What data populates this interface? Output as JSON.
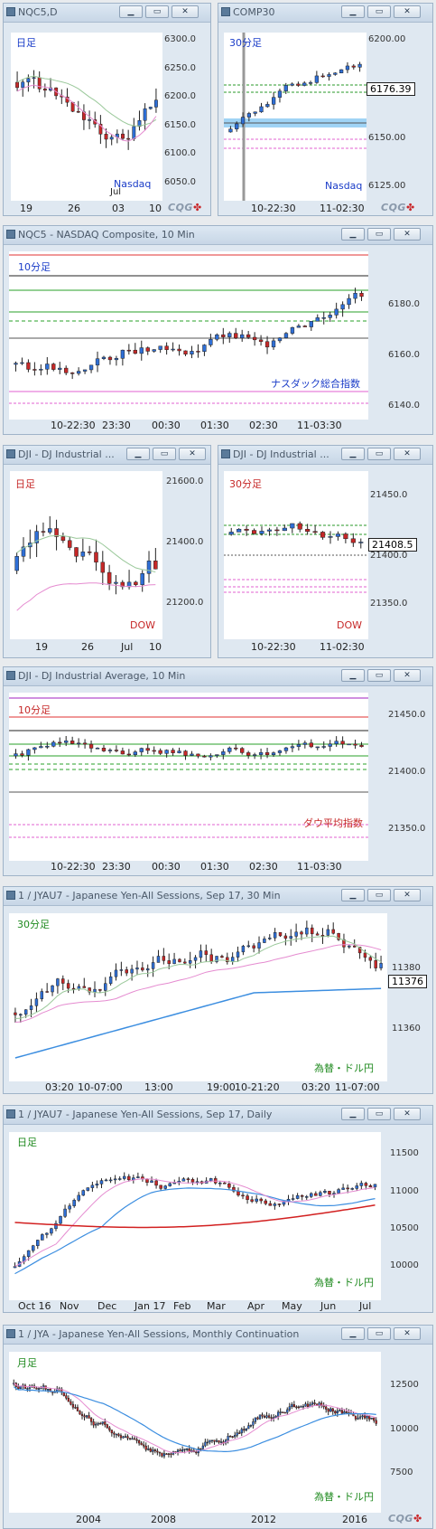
{
  "colors": {
    "up": "#2f6fd6",
    "down": "#c62828",
    "ma_green": "#9bc99b",
    "ma_pink": "#e58bd0",
    "ma_blue": "#3c8ee0",
    "ma_red": "#d22020"
  },
  "window_buttons": {
    "minimize": "▁",
    "restore": "▭",
    "close": "✕"
  },
  "cqg_logo": "CQG",
  "w1": {
    "title": "NQC5,D",
    "tag": "日足",
    "label": "Nasdaq",
    "yaxis": [
      "6300.0",
      "6250.0",
      "6200.0",
      "6150.0",
      "6100.0",
      "6050.0"
    ],
    "xaxis": [
      "19",
      "26",
      "03",
      "10"
    ],
    "xsub": "Jul"
  },
  "w2": {
    "title": "COMP30",
    "tag": "30分足",
    "label": "Nasdaq",
    "price": "6176.39",
    "yaxis": [
      "6200.00",
      "6150.00",
      "6125.00"
    ],
    "xaxis": [
      "10-22:30",
      "11-02:30"
    ]
  },
  "w3": {
    "title": "NQC5 - NASDAQ Composite, 10 Min",
    "tag": "10分足",
    "label": "ナスダック総合指数",
    "yaxis": [
      "6180.0",
      "6160.0",
      "6140.0"
    ],
    "xaxis": [
      "10-22:30",
      "23:30",
      "00:30",
      "01:30",
      "02:30",
      "11-03:30"
    ]
  },
  "w4": {
    "title": "DJI - DJ Industrial ...",
    "tag": "日足",
    "label": "DOW",
    "yaxis": [
      "21600.0",
      "21400.0",
      "21200.0"
    ],
    "xaxis": [
      "19",
      "26",
      "Jul",
      "10"
    ]
  },
  "w5": {
    "title": "DJI - DJ Industrial ...",
    "tag": "30分足",
    "label": "DOW",
    "price": "21408.5",
    "yaxis": [
      "21450.0",
      "21400.0",
      "21350.0"
    ],
    "xaxis": [
      "10-22:30",
      "11-02:30"
    ]
  },
  "w6": {
    "title": "DJI - DJ Industrial Average, 10 Min",
    "tag": "10分足",
    "label": "ダウ平均指数",
    "yaxis": [
      "21450.0",
      "21400.0",
      "21350.0"
    ],
    "xaxis": [
      "10-22:30",
      "23:30",
      "00:30",
      "01:30",
      "02:30",
      "11-03:30"
    ]
  },
  "w7": {
    "title": "1 / JYAU7 - Japanese Yen-All Sessions, Sep 17, 30 Min",
    "tag": "30分足",
    "label": "為替・ドル円",
    "price": "11376",
    "yaxis": [
      "11380",
      "11360"
    ],
    "xaxis": [
      "03:20",
      "10-07:00",
      "13:00",
      "19:00",
      "10-21:20",
      "03:20",
      "11-07:00"
    ]
  },
  "w8": {
    "title": "1 / JYAU7 - Japanese Yen-All Sessions, Sep 17, Daily",
    "tag": "日足",
    "label": "為替・ドル円",
    "yaxis": [
      "11500",
      "11000",
      "10500",
      "10000"
    ],
    "xaxis": [
      "Oct 16",
      "Nov",
      "Dec",
      "Jan 17",
      "Feb",
      "Mar",
      "Apr",
      "May",
      "Jun",
      "Jul"
    ]
  },
  "w9": {
    "title": "1 / JYA - Japanese Yen-All Sessions, Monthly Continuation",
    "tag": "月足",
    "label": "為替・ドル円",
    "yaxis": [
      "12500",
      "10000",
      "7500"
    ],
    "xaxis": [
      "2004",
      "2008",
      "2012",
      "2016"
    ]
  }
}
